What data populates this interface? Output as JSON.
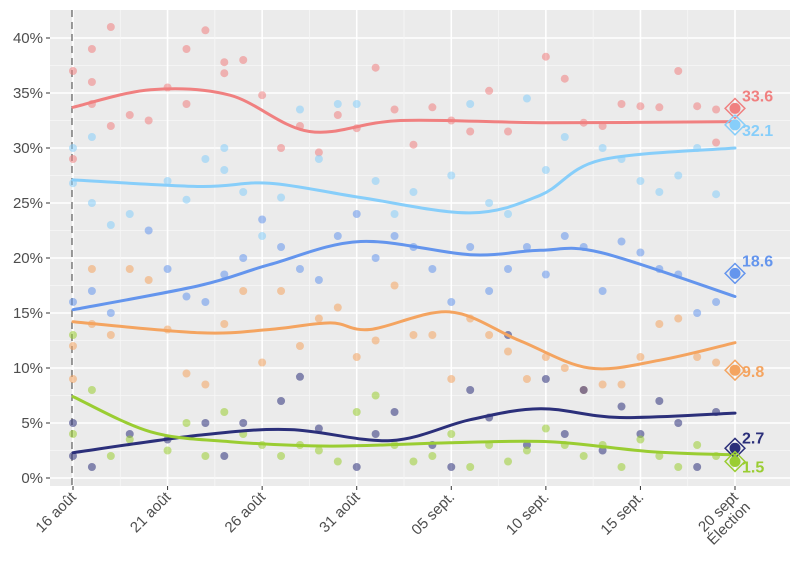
{
  "chart_data": {
    "type": "scatter",
    "title": "",
    "xlabel": "",
    "ylabel": "",
    "x_unit": "days",
    "xlim": [
      -1.2,
      37
    ],
    "ylim": [
      0,
      42
    ],
    "y_ticks": [
      0,
      5,
      10,
      15,
      20,
      25,
      30,
      35,
      40
    ],
    "y_tick_labels": [
      "0%",
      "5%",
      "10%",
      "15%",
      "20%",
      "25%",
      "30%",
      "35%",
      "40%"
    ],
    "x_ticks": [
      0,
      5,
      10,
      15,
      20,
      25,
      30,
      35
    ],
    "x_tick_labels": [
      "16 août",
      "21 août",
      "26 août",
      "31 août",
      "05 sept.",
      "10 sept.",
      "15 sept.",
      "20 sept"
    ],
    "x_tick_sublabels": [
      "",
      "",
      "",
      "",
      "",
      "",
      "",
      "Élection"
    ],
    "reference_line_day": 0,
    "grid": true,
    "series": [
      {
        "color": "#f08080",
        "result": 33.6,
        "result_label": "33.6",
        "smooth": [
          [
            0,
            33.7
          ],
          [
            4.1,
            35.3
          ],
          [
            8.3,
            34.8
          ],
          [
            12.5,
            31.5
          ],
          [
            17.3,
            32.5
          ],
          [
            25,
            32.3
          ],
          [
            35,
            32.4
          ]
        ],
        "points": [
          [
            0,
            37
          ],
          [
            0,
            29
          ],
          [
            1,
            39
          ],
          [
            1,
            36
          ],
          [
            1,
            34
          ],
          [
            2,
            41
          ],
          [
            2,
            32
          ],
          [
            3,
            33
          ],
          [
            4,
            32.5
          ],
          [
            5,
            35.5
          ],
          [
            6,
            39
          ],
          [
            6,
            34
          ],
          [
            7,
            40.7
          ],
          [
            8,
            37.8
          ],
          [
            8,
            36.8
          ],
          [
            9,
            38
          ],
          [
            10,
            34.8
          ],
          [
            11,
            30
          ],
          [
            12,
            32
          ],
          [
            13,
            29.6
          ],
          [
            14,
            33
          ],
          [
            15,
            31.8
          ],
          [
            16,
            37.3
          ],
          [
            17,
            33.5
          ],
          [
            18,
            30.3
          ],
          [
            19,
            33.7
          ],
          [
            20,
            32.5
          ],
          [
            21,
            31.5
          ],
          [
            22,
            35.2
          ],
          [
            23,
            31.5
          ],
          [
            25,
            38.3
          ],
          [
            26,
            36.3
          ],
          [
            27,
            32.3
          ],
          [
            28,
            32
          ],
          [
            29,
            34
          ],
          [
            30,
            33.8
          ],
          [
            31,
            33.7
          ],
          [
            32,
            37
          ],
          [
            33,
            33.8
          ],
          [
            34,
            33.5
          ],
          [
            34,
            30.5
          ]
        ]
      },
      {
        "color": "#87cefa",
        "result": 32.1,
        "result_label": "32.1",
        "smooth": [
          [
            0,
            27.1
          ],
          [
            6.7,
            26.5
          ],
          [
            10.4,
            26.8
          ],
          [
            15.2,
            25.5
          ],
          [
            21,
            24.1
          ],
          [
            24.7,
            25.7
          ],
          [
            27.9,
            28.9
          ],
          [
            35,
            30
          ]
        ],
        "points": [
          [
            0,
            30
          ],
          [
            0,
            26.8
          ],
          [
            1,
            31
          ],
          [
            1,
            25
          ],
          [
            2,
            23
          ],
          [
            3,
            24
          ],
          [
            5,
            27
          ],
          [
            6,
            25.3
          ],
          [
            7,
            29
          ],
          [
            8,
            30
          ],
          [
            8,
            28
          ],
          [
            9,
            26
          ],
          [
            10,
            22
          ],
          [
            11,
            25.5
          ],
          [
            12,
            33.5
          ],
          [
            13,
            29
          ],
          [
            14,
            34
          ],
          [
            15,
            34
          ],
          [
            16,
            27
          ],
          [
            17,
            24
          ],
          [
            18,
            26
          ],
          [
            20,
            27.5
          ],
          [
            21,
            34
          ],
          [
            22,
            25
          ],
          [
            23,
            24
          ],
          [
            24,
            34.5
          ],
          [
            25,
            28
          ],
          [
            26,
            31
          ],
          [
            28,
            30
          ],
          [
            29,
            29
          ],
          [
            30,
            27
          ],
          [
            31,
            26
          ],
          [
            32,
            27.5
          ],
          [
            33,
            30
          ],
          [
            34,
            25.8
          ]
        ]
      },
      {
        "color": "#6495ed",
        "result": 18.6,
        "result_label": "18.6",
        "smooth": [
          [
            0,
            15.3
          ],
          [
            6.7,
            17.5
          ],
          [
            10.4,
            19.4
          ],
          [
            15.2,
            21.5
          ],
          [
            21,
            20.3
          ],
          [
            24.7,
            20.7
          ],
          [
            27.9,
            20.5
          ],
          [
            35,
            16.5
          ]
        ],
        "points": [
          [
            0,
            16
          ],
          [
            1,
            17
          ],
          [
            2,
            15
          ],
          [
            4,
            22.5
          ],
          [
            5,
            19
          ],
          [
            6,
            16.5
          ],
          [
            7,
            16
          ],
          [
            8,
            18.5
          ],
          [
            9,
            20
          ],
          [
            10,
            23.5
          ],
          [
            11,
            21
          ],
          [
            12,
            19
          ],
          [
            13,
            18
          ],
          [
            14,
            22
          ],
          [
            15,
            24
          ],
          [
            16,
            20
          ],
          [
            17,
            22
          ],
          [
            18,
            21
          ],
          [
            19,
            19
          ],
          [
            20,
            16
          ],
          [
            21,
            21
          ],
          [
            22,
            17
          ],
          [
            23,
            19
          ],
          [
            24,
            21
          ],
          [
            25,
            18.5
          ],
          [
            26,
            22
          ],
          [
            27,
            21
          ],
          [
            28,
            17
          ],
          [
            29,
            21.5
          ],
          [
            30,
            20.5
          ],
          [
            31,
            19
          ],
          [
            32,
            18.5
          ],
          [
            33,
            15
          ],
          [
            34,
            16
          ]
        ]
      },
      {
        "color": "#f4a460",
        "result": 9.8,
        "result_label": "9.8",
        "smooth": [
          [
            0,
            14.2
          ],
          [
            6.7,
            13.2
          ],
          [
            10.4,
            13.5
          ],
          [
            13.6,
            14.1
          ],
          [
            15.7,
            13.5
          ],
          [
            19.9,
            15.1
          ],
          [
            23.6,
            12.5
          ],
          [
            27.3,
            10
          ],
          [
            31,
            10.7
          ],
          [
            35,
            12.3
          ]
        ],
        "points": [
          [
            0,
            12
          ],
          [
            0,
            9
          ],
          [
            1,
            19
          ],
          [
            1,
            14
          ],
          [
            2,
            13
          ],
          [
            3,
            19
          ],
          [
            4,
            18
          ],
          [
            5,
            13.5
          ],
          [
            6,
            9.5
          ],
          [
            7,
            8.5
          ],
          [
            8,
            14
          ],
          [
            9,
            17
          ],
          [
            10,
            10.5
          ],
          [
            11,
            17
          ],
          [
            12,
            12
          ],
          [
            13,
            14.5
          ],
          [
            14,
            15.5
          ],
          [
            15,
            11
          ],
          [
            16,
            12.5
          ],
          [
            17,
            17.5
          ],
          [
            18,
            13
          ],
          [
            19,
            13
          ],
          [
            20,
            9
          ],
          [
            21,
            14.5
          ],
          [
            22,
            13
          ],
          [
            23,
            11.5
          ],
          [
            24,
            9
          ],
          [
            25,
            11
          ],
          [
            26,
            10
          ],
          [
            27,
            8
          ],
          [
            28,
            8.5
          ],
          [
            29,
            8.5
          ],
          [
            30,
            11
          ],
          [
            31,
            14
          ],
          [
            32,
            14.5
          ],
          [
            33,
            11
          ],
          [
            34,
            10.5
          ]
        ]
      },
      {
        "color": "#2b2f7a",
        "result": 2.7,
        "result_label": "2.7",
        "smooth": [
          [
            0,
            2.3
          ],
          [
            6.7,
            3.9
          ],
          [
            11.5,
            4.4
          ],
          [
            16.8,
            3.4
          ],
          [
            21,
            5.3
          ],
          [
            24.7,
            6.3
          ],
          [
            28.9,
            5.5
          ],
          [
            35,
            5.9
          ]
        ],
        "points": [
          [
            0,
            5
          ],
          [
            0,
            2
          ],
          [
            1,
            1
          ],
          [
            3,
            4
          ],
          [
            5,
            3.5
          ],
          [
            7,
            5
          ],
          [
            8,
            2
          ],
          [
            9,
            5
          ],
          [
            11,
            7
          ],
          [
            12,
            9.2
          ],
          [
            13,
            4.5
          ],
          [
            15,
            1
          ],
          [
            16,
            4
          ],
          [
            17,
            6
          ],
          [
            19,
            3
          ],
          [
            20,
            1
          ],
          [
            21,
            8
          ],
          [
            22,
            5.5
          ],
          [
            23,
            13
          ],
          [
            24,
            3
          ],
          [
            25,
            9
          ],
          [
            26,
            4
          ],
          [
            27,
            8
          ],
          [
            28,
            2.5
          ],
          [
            29,
            6.5
          ],
          [
            30,
            4
          ],
          [
            31,
            7
          ],
          [
            32,
            5
          ],
          [
            33,
            1
          ],
          [
            34,
            6
          ]
        ]
      },
      {
        "color": "#9acd32",
        "result": 1.5,
        "result_label": "1.5",
        "smooth": [
          [
            0,
            7.4
          ],
          [
            4.1,
            4.2
          ],
          [
            8.3,
            3.3
          ],
          [
            13.6,
            2.9
          ],
          [
            19.9,
            3.2
          ],
          [
            25.2,
            3.3
          ],
          [
            30.5,
            2.4
          ],
          [
            35,
            2.1
          ]
        ],
        "points": [
          [
            0,
            4
          ],
          [
            0,
            13
          ],
          [
            1,
            8
          ],
          [
            2,
            2
          ],
          [
            3,
            3.5
          ],
          [
            5,
            2.5
          ],
          [
            6,
            5
          ],
          [
            7,
            2
          ],
          [
            8,
            6
          ],
          [
            9,
            4
          ],
          [
            10,
            3
          ],
          [
            11,
            2
          ],
          [
            12,
            3
          ],
          [
            13,
            2.5
          ],
          [
            14,
            1.5
          ],
          [
            15,
            6
          ],
          [
            16,
            7.5
          ],
          [
            17,
            3
          ],
          [
            18,
            1.5
          ],
          [
            19,
            2
          ],
          [
            20,
            4
          ],
          [
            21,
            1
          ],
          [
            22,
            3
          ],
          [
            23,
            1.5
          ],
          [
            24,
            2.5
          ],
          [
            25,
            4.5
          ],
          [
            26,
            3
          ],
          [
            27,
            2
          ],
          [
            28,
            3
          ],
          [
            29,
            1
          ],
          [
            30,
            3.5
          ],
          [
            31,
            2
          ],
          [
            32,
            1
          ],
          [
            33,
            3
          ],
          [
            34,
            2
          ]
        ]
      }
    ]
  }
}
